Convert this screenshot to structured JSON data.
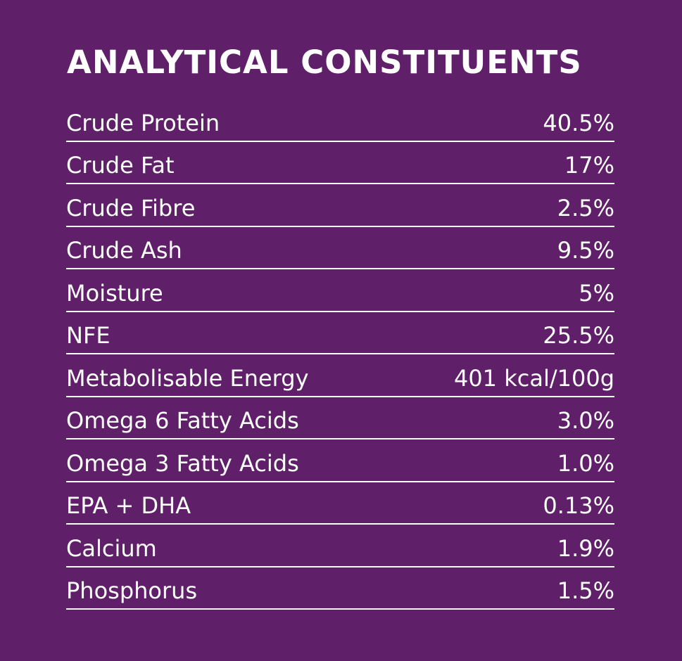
{
  "title": "ANALYTICAL CONSTITUENTS",
  "colors": {
    "background": "#5f1f69",
    "text": "#ffffff",
    "divider": "#ffffff"
  },
  "rows": [
    {
      "label": "Crude Protein",
      "value": "40.5%"
    },
    {
      "label": "Crude Fat",
      "value": "17%"
    },
    {
      "label": "Crude Fibre",
      "value": "2.5%"
    },
    {
      "label": "Crude Ash",
      "value": "9.5%"
    },
    {
      "label": "Moisture",
      "value": "5%"
    },
    {
      "label": "NFE",
      "value": "25.5%"
    },
    {
      "label": "Metabolisable Energy",
      "value": "401 kcal/100g"
    },
    {
      "label": "Omega 6 Fatty Acids",
      "value": "3.0%"
    },
    {
      "label": "Omega 3 Fatty Acids",
      "value": "1.0%"
    },
    {
      "label": "EPA + DHA",
      "value": "0.13%"
    },
    {
      "label": "Calcium",
      "value": "1.9%"
    },
    {
      "label": "Phosphorus",
      "value": "1.5%"
    }
  ]
}
